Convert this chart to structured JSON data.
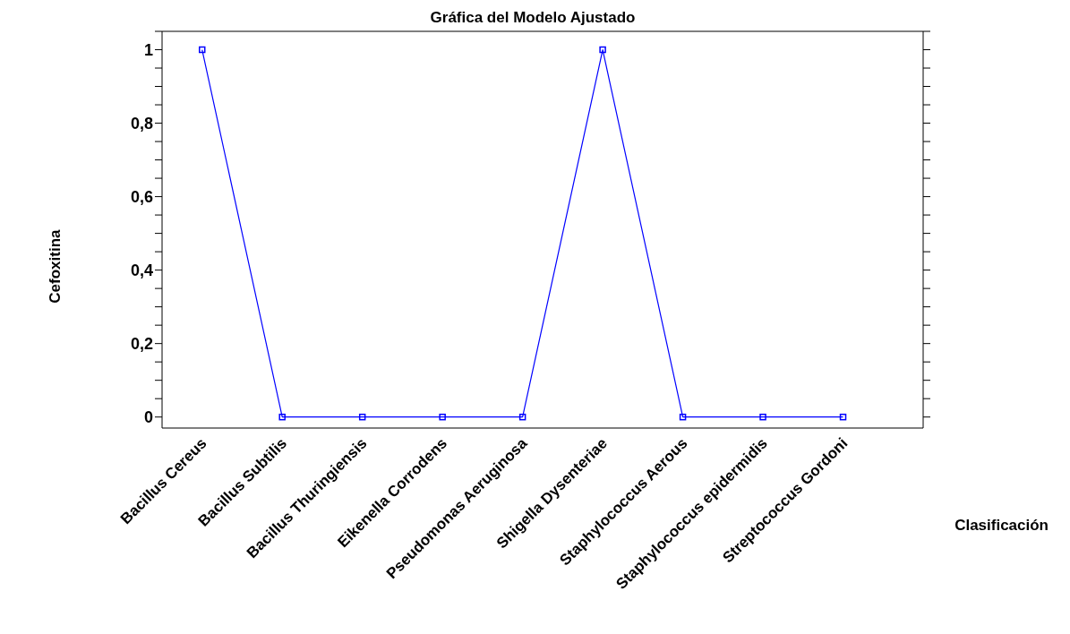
{
  "chart_data": {
    "type": "line",
    "title": "Gráfica del Modelo Ajustado",
    "xlabel": "Clasificación",
    "ylabel": "Cefoxitina",
    "categories": [
      "Bacillus Cereus",
      "Bacillus Subtilis",
      "Bacillus Thuringiensis",
      "Eikenella Corrodens",
      "Pseudomonas Aeruginosa",
      "Shigella Dysenteriae",
      "Staphylococcus Aerous",
      "Staphylococcus epidermidis",
      "Streptococcus Gordoni"
    ],
    "series": [
      {
        "color": "#0000ff",
        "values": [
          1,
          0,
          0,
          0,
          0,
          1,
          0,
          0,
          0
        ]
      }
    ],
    "ylim": [
      -0.03,
      1.05
    ],
    "yticks": [
      {
        "value": 0,
        "label": "0"
      },
      {
        "value": 0.05,
        "label": null
      },
      {
        "value": 0.1,
        "label": null
      },
      {
        "value": 0.15,
        "label": null
      },
      {
        "value": 0.2,
        "label": "0,2"
      },
      {
        "value": 0.25,
        "label": null
      },
      {
        "value": 0.3,
        "label": null
      },
      {
        "value": 0.35,
        "label": null
      },
      {
        "value": 0.4,
        "label": "0,4"
      },
      {
        "value": 0.45,
        "label": null
      },
      {
        "value": 0.5,
        "label": null
      },
      {
        "value": 0.55,
        "label": null
      },
      {
        "value": 0.6,
        "label": "0,6"
      },
      {
        "value": 0.65,
        "label": null
      },
      {
        "value": 0.7,
        "label": null
      },
      {
        "value": 0.75,
        "label": null
      },
      {
        "value": 0.8,
        "label": "0,8"
      },
      {
        "value": 0.85,
        "label": null
      },
      {
        "value": 0.9,
        "label": null
      },
      {
        "value": 0.95,
        "label": null
      },
      {
        "value": 1,
        "label": "1"
      },
      {
        "value": 1.05,
        "label": null
      }
    ],
    "marker": "square",
    "line_style": "solid",
    "grid": false,
    "legend": false
  }
}
